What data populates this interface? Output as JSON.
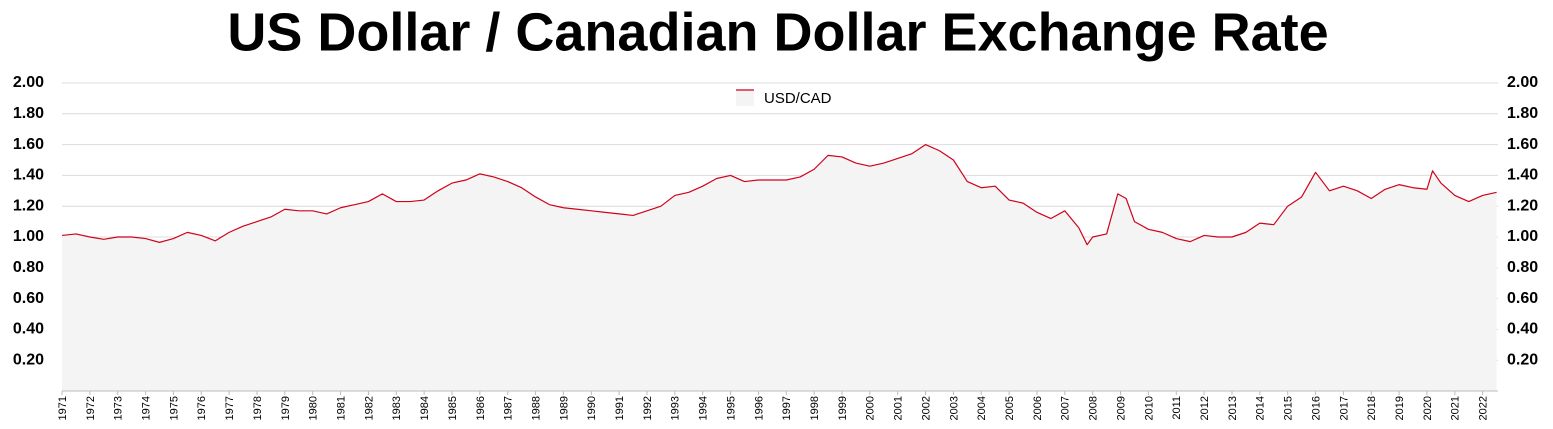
{
  "chart_data": {
    "type": "line",
    "title": "US Dollar / Canadian Dollar Exchange Rate",
    "x": [
      1971.0,
      1971.5,
      1972.0,
      1972.5,
      1973.0,
      1973.5,
      1974.0,
      1974.5,
      1975.0,
      1975.5,
      1976.0,
      1976.5,
      1977.0,
      1977.5,
      1978.0,
      1978.5,
      1979.0,
      1979.5,
      1980.0,
      1980.5,
      1981.0,
      1981.5,
      1982.0,
      1982.5,
      1983.0,
      1983.5,
      1984.0,
      1984.5,
      1985.0,
      1985.5,
      1986.0,
      1986.5,
      1987.0,
      1987.5,
      1988.0,
      1988.5,
      1989.0,
      1989.5,
      1990.0,
      1990.5,
      1991.0,
      1991.5,
      1992.0,
      1992.5,
      1993.0,
      1993.5,
      1994.0,
      1994.5,
      1995.0,
      1995.5,
      1996.0,
      1996.5,
      1997.0,
      1997.5,
      1998.0,
      1998.5,
      1999.0,
      1999.5,
      2000.0,
      2000.5,
      2001.0,
      2001.5,
      2002.0,
      2002.5,
      2003.0,
      2003.5,
      2004.0,
      2004.5,
      2005.0,
      2005.5,
      2006.0,
      2006.5,
      2007.0,
      2007.5,
      2007.8,
      2008.0,
      2008.5,
      2008.9,
      2009.2,
      2009.5,
      2010.0,
      2010.5,
      2011.0,
      2011.5,
      2012.0,
      2012.5,
      2013.0,
      2013.5,
      2014.0,
      2014.5,
      2015.0,
      2015.5,
      2016.0,
      2016.5,
      2017.0,
      2017.5,
      2018.0,
      2018.5,
      2019.0,
      2019.5,
      2020.0,
      2020.2,
      2020.5,
      2021.0,
      2021.5,
      2022.0,
      2022.5
    ],
    "series": [
      {
        "name": "USD/CAD",
        "color": "#d0021b",
        "area_color": "#f4f4f4",
        "values": [
          1.01,
          1.02,
          1.0,
          0.985,
          1.0,
          1.0,
          0.99,
          0.965,
          0.99,
          1.03,
          1.01,
          0.975,
          1.03,
          1.07,
          1.1,
          1.13,
          1.18,
          1.17,
          1.17,
          1.15,
          1.19,
          1.21,
          1.23,
          1.28,
          1.23,
          1.23,
          1.24,
          1.3,
          1.35,
          1.37,
          1.41,
          1.39,
          1.36,
          1.32,
          1.26,
          1.21,
          1.19,
          1.18,
          1.17,
          1.16,
          1.15,
          1.14,
          1.17,
          1.2,
          1.27,
          1.29,
          1.33,
          1.38,
          1.4,
          1.36,
          1.37,
          1.37,
          1.37,
          1.39,
          1.44,
          1.53,
          1.52,
          1.48,
          1.46,
          1.48,
          1.51,
          1.54,
          1.6,
          1.56,
          1.5,
          1.36,
          1.32,
          1.33,
          1.24,
          1.22,
          1.16,
          1.12,
          1.17,
          1.06,
          0.95,
          1.0,
          1.02,
          1.28,
          1.25,
          1.1,
          1.05,
          1.03,
          0.99,
          0.97,
          1.01,
          1.0,
          1.0,
          1.03,
          1.09,
          1.08,
          1.2,
          1.26,
          1.42,
          1.3,
          1.33,
          1.3,
          1.25,
          1.31,
          1.34,
          1.32,
          1.31,
          1.43,
          1.35,
          1.27,
          1.23,
          1.27,
          1.29
        ]
      }
    ],
    "xlim": [
      1971,
      2022.55
    ],
    "xticks": [
      1971,
      1972,
      1973,
      1974,
      1975,
      1976,
      1977,
      1978,
      1979,
      1980,
      1981,
      1982,
      1983,
      1984,
      1985,
      1986,
      1987,
      1988,
      1989,
      1990,
      1991,
      1992,
      1993,
      1994,
      1995,
      1996,
      1997,
      1998,
      1999,
      2000,
      2001,
      2002,
      2003,
      2004,
      2005,
      2006,
      2007,
      2008,
      2009,
      2010,
      2011,
      2012,
      2013,
      2014,
      2015,
      2016,
      2017,
      2018,
      2019,
      2020,
      2021,
      2022
    ],
    "ylim": [
      0,
      2
    ],
    "yticks": [
      {
        "value": 0.2,
        "label": "0.20"
      },
      {
        "value": 0.4,
        "label": "0.40"
      },
      {
        "value": 0.6,
        "label": "0.60"
      },
      {
        "value": 0.8,
        "label": "0.80"
      },
      {
        "value": 1.0,
        "label": "1.00"
      },
      {
        "value": 1.2,
        "label": "1.20"
      },
      {
        "value": 1.4,
        "label": "1.40"
      },
      {
        "value": 1.6,
        "label": "1.60"
      },
      {
        "value": 1.8,
        "label": "1.80"
      },
      {
        "value": 2.0,
        "label": "2.00"
      }
    ],
    "y_axis_both_sides": true,
    "grid": true,
    "legend": "top"
  }
}
